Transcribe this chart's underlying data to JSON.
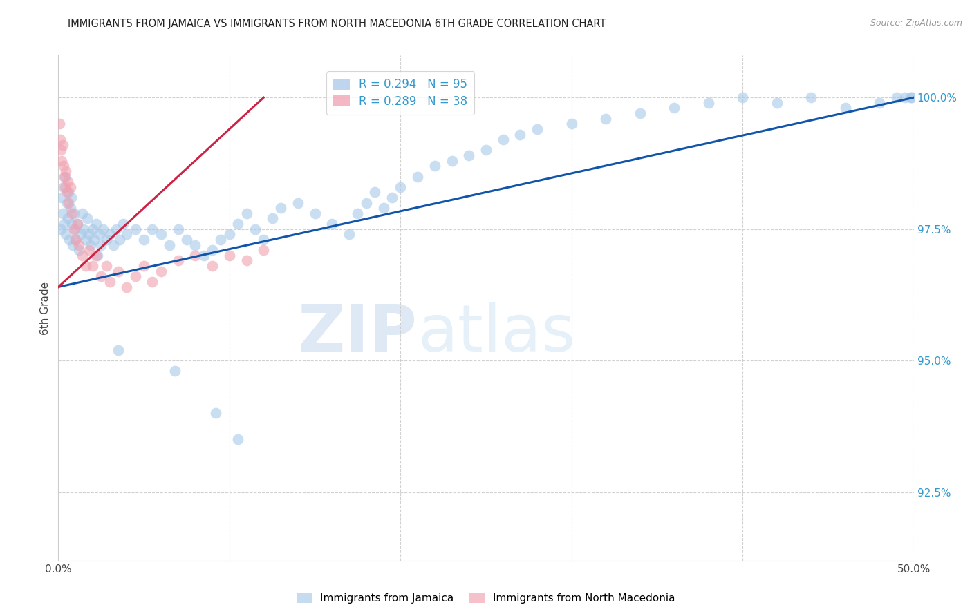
{
  "title": "IMMIGRANTS FROM JAMAICA VS IMMIGRANTS FROM NORTH MACEDONIA 6TH GRADE CORRELATION CHART",
  "source": "Source: ZipAtlas.com",
  "ylabel": "6th Grade",
  "xlim": [
    0.0,
    50.0
  ],
  "ylim": [
    91.2,
    100.8
  ],
  "yticks": [
    92.5,
    95.0,
    97.5,
    100.0
  ],
  "ytick_labels": [
    "92.5%",
    "95.0%",
    "97.5%",
    "100.0%"
  ],
  "legend_blue_r": "R = 0.294",
  "legend_blue_n": "N = 95",
  "legend_pink_r": "R = 0.289",
  "legend_pink_n": "N = 38",
  "blue_color": "#A8C8E8",
  "pink_color": "#F0A0B0",
  "blue_line_color": "#1155AA",
  "pink_line_color": "#CC2244",
  "watermark_zip": "ZIP",
  "watermark_atlas": "atlas",
  "blue_line_x": [
    0.0,
    50.0
  ],
  "blue_line_y": [
    96.4,
    100.0
  ],
  "pink_line_x": [
    0.0,
    12.0
  ],
  "pink_line_y": [
    96.4,
    100.0
  ],
  "jamaica_x": [
    0.15,
    0.2,
    0.25,
    0.3,
    0.35,
    0.4,
    0.45,
    0.5,
    0.55,
    0.6,
    0.65,
    0.7,
    0.75,
    0.8,
    0.85,
    0.9,
    0.95,
    1.0,
    1.1,
    1.2,
    1.3,
    1.4,
    1.5,
    1.6,
    1.7,
    1.8,
    1.9,
    2.0,
    2.1,
    2.2,
    2.3,
    2.4,
    2.5,
    2.6,
    2.8,
    3.0,
    3.2,
    3.4,
    3.6,
    3.8,
    4.0,
    4.5,
    5.0,
    5.5,
    6.0,
    6.5,
    7.0,
    7.5,
    8.0,
    8.5,
    9.0,
    9.5,
    10.0,
    10.5,
    11.0,
    11.5,
    12.0,
    12.5,
    13.0,
    14.0,
    15.0,
    16.0,
    17.0,
    17.5,
    18.0,
    18.5,
    19.0,
    19.5,
    20.0,
    21.0,
    22.0,
    23.0,
    24.0,
    25.0,
    26.0,
    27.0,
    28.0,
    30.0,
    32.0,
    34.0,
    36.0,
    38.0,
    40.0,
    42.0,
    44.0,
    46.0,
    48.0,
    49.0,
    49.5,
    49.8,
    49.9,
    10.5,
    3.5,
    6.8,
    9.2
  ],
  "jamaica_y": [
    97.5,
    98.1,
    97.8,
    98.3,
    97.6,
    98.5,
    97.4,
    98.0,
    97.7,
    98.2,
    97.3,
    97.9,
    98.1,
    97.6,
    97.2,
    97.8,
    97.5,
    97.3,
    97.6,
    97.1,
    97.4,
    97.8,
    97.5,
    97.3,
    97.7,
    97.4,
    97.2,
    97.5,
    97.3,
    97.6,
    97.0,
    97.4,
    97.2,
    97.5,
    97.3,
    97.4,
    97.2,
    97.5,
    97.3,
    97.6,
    97.4,
    97.5,
    97.3,
    97.5,
    97.4,
    97.2,
    97.5,
    97.3,
    97.2,
    97.0,
    97.1,
    97.3,
    97.4,
    97.6,
    97.8,
    97.5,
    97.3,
    97.7,
    97.9,
    98.0,
    97.8,
    97.6,
    97.4,
    97.8,
    98.0,
    98.2,
    97.9,
    98.1,
    98.3,
    98.5,
    98.7,
    98.8,
    98.9,
    99.0,
    99.2,
    99.3,
    99.4,
    99.5,
    99.6,
    99.7,
    99.8,
    99.9,
    100.0,
    99.9,
    100.0,
    99.8,
    99.9,
    100.0,
    100.0,
    100.0,
    100.0,
    93.5,
    95.2,
    94.8,
    94.0
  ],
  "macedonia_x": [
    0.05,
    0.1,
    0.15,
    0.2,
    0.25,
    0.3,
    0.35,
    0.4,
    0.45,
    0.5,
    0.55,
    0.6,
    0.7,
    0.8,
    0.9,
    1.0,
    1.1,
    1.2,
    1.4,
    1.6,
    1.8,
    2.0,
    2.2,
    2.5,
    2.8,
    3.0,
    3.5,
    4.0,
    4.5,
    5.0,
    5.5,
    6.0,
    7.0,
    8.0,
    9.0,
    10.0,
    11.0,
    12.0
  ],
  "macedonia_y": [
    99.5,
    99.2,
    99.0,
    98.8,
    99.1,
    98.7,
    98.5,
    98.3,
    98.6,
    98.2,
    98.4,
    98.0,
    98.3,
    97.8,
    97.5,
    97.3,
    97.6,
    97.2,
    97.0,
    96.8,
    97.1,
    96.8,
    97.0,
    96.6,
    96.8,
    96.5,
    96.7,
    96.4,
    96.6,
    96.8,
    96.5,
    96.7,
    96.9,
    97.0,
    96.8,
    97.0,
    96.9,
    97.1
  ]
}
